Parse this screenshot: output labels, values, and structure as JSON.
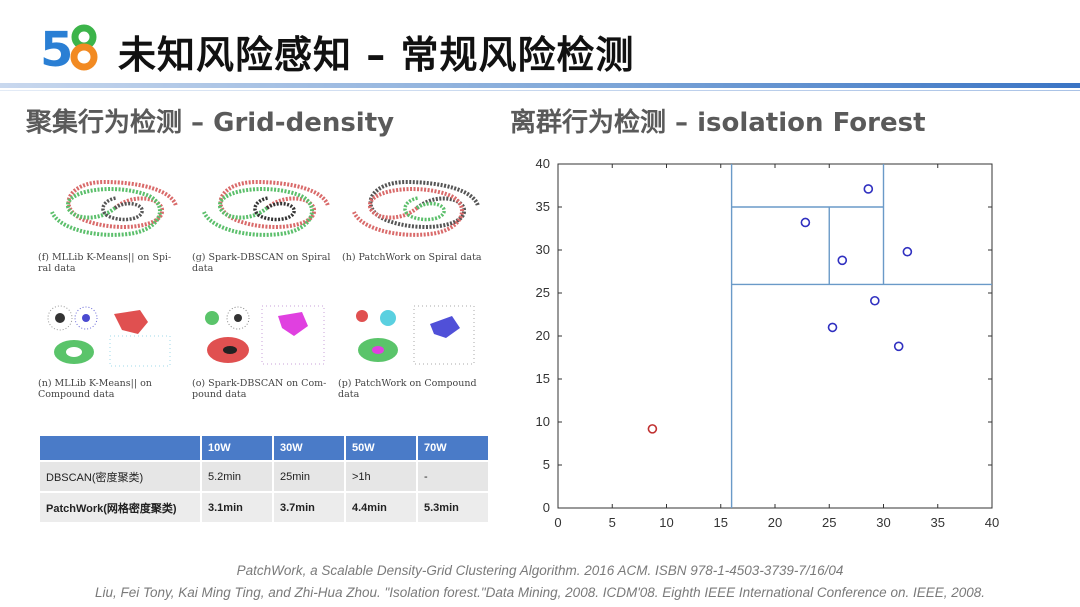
{
  "header": {
    "logo_text": "58",
    "title": "未知风险感知 – 常规风险检测"
  },
  "left_section": {
    "title": "聚集行为检测  – Grid-density",
    "figures": [
      {
        "caption": "(f) MLLib K-Means|| on Spi- ral data"
      },
      {
        "caption": "(g) Spark-DBSCAN on Spiral data"
      },
      {
        "caption": "(h) PatchWork on Spiral data"
      },
      {
        "caption": "(n) MLLib K-Means|| on Compound data"
      },
      {
        "caption": "(o) Spark-DBSCAN on Com- pound data"
      },
      {
        "caption": "(p) PatchWork on Compound data"
      }
    ],
    "table": {
      "headers": [
        "",
        "10W",
        "30W",
        "50W",
        "70W"
      ],
      "rows": [
        {
          "cells": [
            "DBSCAN(密度聚类)",
            "5.2min",
            "25min",
            ">1h",
            "-"
          ],
          "bold": false
        },
        {
          "cells": [
            "PatchWork(网格密度聚类)",
            "3.1min",
            "3.7min",
            "4.4min",
            "5.3min"
          ],
          "bold": true
        }
      ]
    }
  },
  "right_section": {
    "title": "离群行为检测  – isolation Forest"
  },
  "chart_data": {
    "type": "scatter",
    "title": "",
    "xlabel": "",
    "ylabel": "",
    "xlim": [
      0,
      40
    ],
    "ylim": [
      0,
      40
    ],
    "xticks": [
      0,
      5,
      10,
      15,
      20,
      25,
      30,
      35,
      40
    ],
    "yticks": [
      0,
      5,
      10,
      15,
      20,
      25,
      30,
      35,
      40
    ],
    "series": [
      {
        "color": "#3030c0",
        "points": [
          [
            22.8,
            33.2
          ],
          [
            28.6,
            37.1
          ],
          [
            26.2,
            28.8
          ],
          [
            32.2,
            29.8
          ],
          [
            29.2,
            24.1
          ],
          [
            25.3,
            21.0
          ],
          [
            31.4,
            18.8
          ]
        ]
      },
      {
        "color": "#c03030",
        "points": [
          [
            8.7,
            9.2
          ]
        ]
      }
    ],
    "splits": [
      {
        "axis": "x",
        "value": 16,
        "from": 0,
        "to": 40
      },
      {
        "axis": "y",
        "value": 26,
        "from": 16,
        "to": 40
      },
      {
        "axis": "x",
        "value": 30,
        "from": 26,
        "to": 40
      },
      {
        "axis": "y",
        "value": 35,
        "from": 16,
        "to": 30
      },
      {
        "axis": "x",
        "value": 25,
        "from": 26,
        "to": 35
      }
    ],
    "split_color": "#6a9ac8",
    "grid": false
  },
  "references": [
    "PatchWork, a Scalable Density-Grid Clustering Algorithm. 2016 ACM. ISBN 978-1-4503-3739-7/16/04",
    "Liu, Fei Tony, Kai Ming Ting, and Zhi-Hua Zhou. \"Isolation forest.\"Data Mining, 2008. ICDM'08. Eighth IEEE International Conference on. IEEE, 2008."
  ]
}
